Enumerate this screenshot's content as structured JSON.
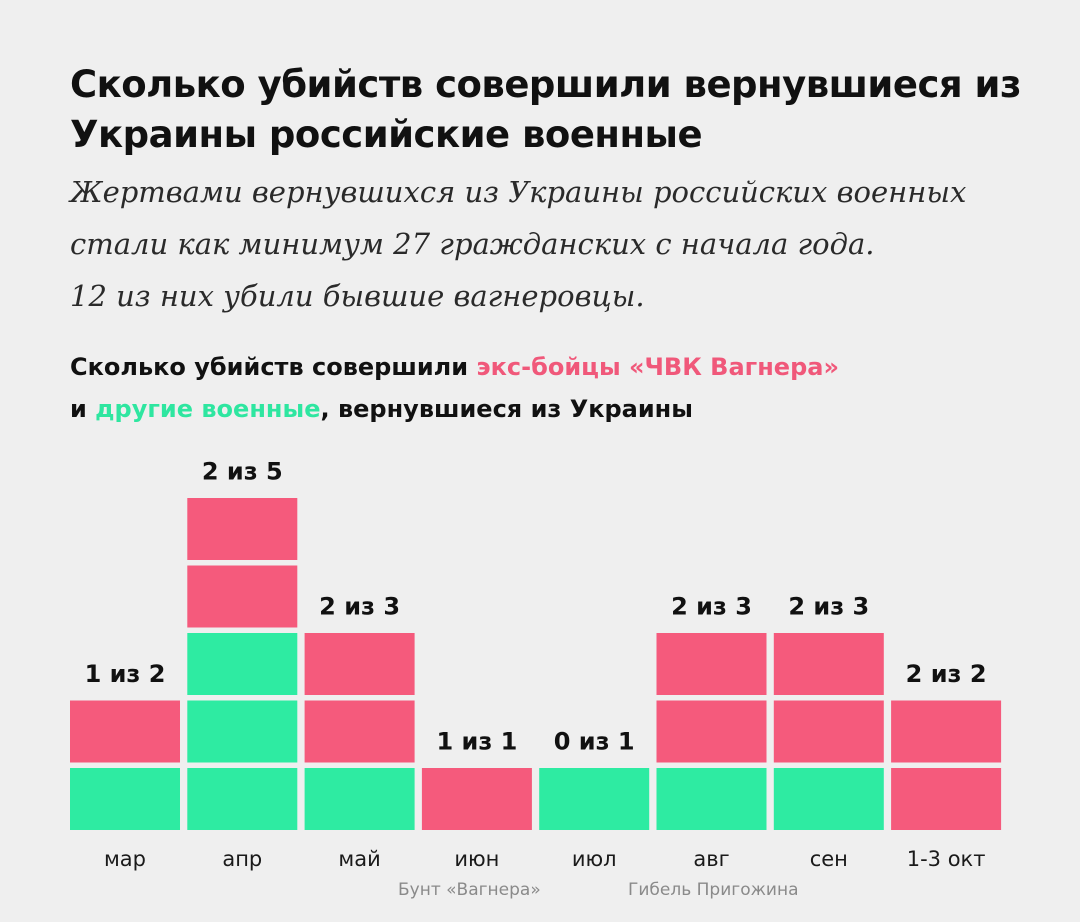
{
  "title": "Сколько убийств совершили вернувшиеся из Украины российские военные",
  "subtitle": {
    "line1": "Жертвами вернувшихся из Украины российских военных",
    "line2": "стали как минимум 27 гражданских с начала года.",
    "line3": "12 из них убили бывшие вагнеровцы."
  },
  "chart_heading": {
    "part1": "Сколько убийств совершили ",
    "wagner": "экс-бойцы «ЧВК Вагнера»",
    "part2": "и ",
    "other": "другие военные",
    "part3": ", вернувшиеся из Украины"
  },
  "chart_data": {
    "type": "bar",
    "stacked": true,
    "categories": [
      "мар",
      "апр",
      "май",
      "июн",
      "июл",
      "авг",
      "сен",
      "1-3 окт"
    ],
    "series": [
      {
        "name": "другие военные",
        "values": [
          1,
          3,
          1,
          0,
          1,
          1,
          1,
          0
        ]
      },
      {
        "name": "экс-бойцы «ЧВК Вагнера»",
        "values": [
          1,
          2,
          2,
          1,
          0,
          2,
          2,
          2
        ]
      }
    ],
    "data_labels": [
      "1 из 2",
      "2 из 5",
      "2 из 3",
      "1 из 1",
      "0 из 1",
      "2 из 3",
      "2 из 3",
      "2 из 2"
    ],
    "annotations": [
      "Бунт «Вагнера»",
      "Гибель Пригожина"
    ],
    "ylim": [
      0,
      5
    ],
    "grid": false
  },
  "colors": {
    "wagner": "#f55a7c",
    "other": "#2eeba2",
    "background": "#efefef"
  }
}
